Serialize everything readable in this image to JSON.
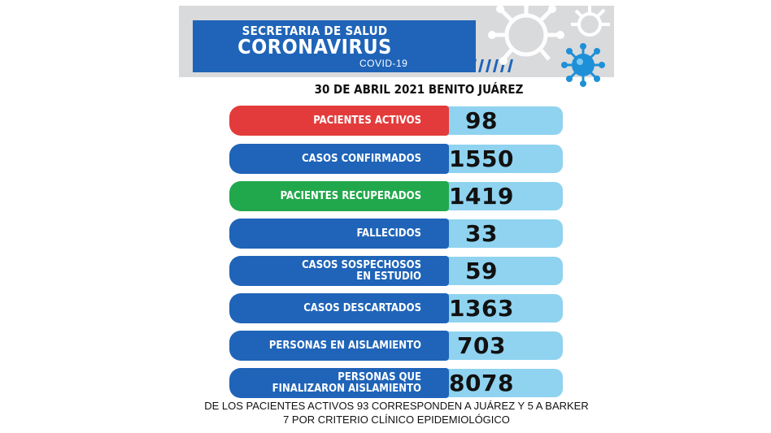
{
  "header": {
    "line1": "SECRETARIA DE SALUD",
    "line2": "CORONAVIRUS",
    "line3": "COVID-19"
  },
  "date_line": "30 DE ABRIL  2021 BENITO JUÁREZ",
  "stats": [
    {
      "label_1": "PACIENTES ACTIVOS",
      "label_2": "",
      "value": "98",
      "color": "#e33b3b"
    },
    {
      "label_1": "CASOS CONFIRMADOS",
      "label_2": "",
      "value": "1550",
      "color": "#1f64b8"
    },
    {
      "label_1": "PACIENTES RECUPERADOS",
      "label_2": "",
      "value": "1419",
      "color": "#22a84c"
    },
    {
      "label_1": "FALLECIDOS",
      "label_2": "",
      "value": "33",
      "color": "#1f64b8"
    },
    {
      "label_1": "CASOS SOSPECHOSOS",
      "label_2": "EN ESTUDIO",
      "value": "59",
      "color": "#1f64b8"
    },
    {
      "label_1": "CASOS DESCARTADOS",
      "label_2": "",
      "value": "1363",
      "color": "#1f64b8"
    },
    {
      "label_1": "PERSONAS EN AISLAMIENTO",
      "label_2": "",
      "value": "703",
      "color": "#1f64b8"
    },
    {
      "label_1": "PERSONAS QUE",
      "label_2": "FINALIZARON AISLAMIENTO",
      "value": "8078",
      "color": "#1f64b8"
    }
  ],
  "footnote": {
    "line1": "DE LOS PACIENTES ACTIVOS 93 CORRESPONDEN A JUÁREZ Y 5 A BARKER",
    "line2": "7 POR CRITERIO CLÍNICO EPIDEMIOLÓGICO"
  },
  "colors": {
    "value_box": "#8fd3f0",
    "header_blue": "#1f64b8",
    "band_gray": "#d9dadc"
  }
}
